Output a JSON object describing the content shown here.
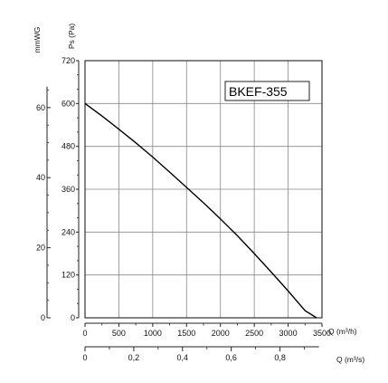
{
  "chart_data": {
    "type": "line",
    "model_label": "BKEF-355",
    "y_title": "Ps (Pa)",
    "y2_title": "mmWG",
    "x_title": "Q (m³/h)",
    "x2_title": "Q (m³/s)",
    "xlim": [
      0,
      3500
    ],
    "ylim": [
      0,
      720
    ],
    "x_ticks": [
      "0",
      "500",
      "1000",
      "1500",
      "2000",
      "2500",
      "3000",
      "3500"
    ],
    "y_ticks": [
      "0",
      "120",
      "240",
      "360",
      "480",
      "600",
      "720"
    ],
    "mm_ticks": [
      "0",
      "20",
      "40",
      "60"
    ],
    "ms_ticks": [
      "0",
      "0,2",
      "0,4",
      "0,6",
      "0,8"
    ],
    "grid": true,
    "series": [
      {
        "x": [
          0,
          250,
          500,
          750,
          1000,
          1250,
          1500,
          1750,
          2000,
          2250,
          2500,
          2750,
          3000,
          3250,
          3420
        ],
        "y": [
          600,
          565,
          528,
          490,
          450,
          408,
          365,
          322,
          277,
          230,
          180,
          128,
          75,
          20,
          0
        ]
      }
    ]
  }
}
